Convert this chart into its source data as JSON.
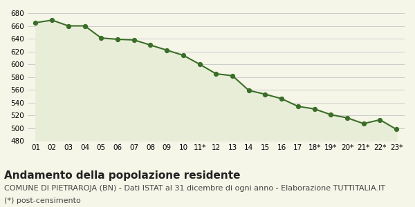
{
  "x_labels": [
    "01",
    "02",
    "03",
    "04",
    "05",
    "06",
    "07",
    "08",
    "09",
    "10",
    "11*",
    "12",
    "13",
    "14",
    "15",
    "16",
    "17",
    "18*",
    "19*",
    "20*",
    "21*",
    "22*",
    "23*"
  ],
  "plot_values": [
    665,
    669,
    660,
    660,
    641,
    639,
    638,
    630,
    622,
    614,
    600,
    585,
    582,
    559,
    553,
    546,
    534,
    530,
    521,
    516,
    507,
    513,
    498
  ],
  "ylim": [
    480,
    680
  ],
  "yticks": [
    480,
    500,
    520,
    540,
    560,
    580,
    600,
    620,
    640,
    660,
    680
  ],
  "line_color": "#3a6e28",
  "fill_color": "#e8edd8",
  "marker_color": "#3a6e28",
  "bg_color": "#f5f5e8",
  "grid_color": "#cccccc",
  "title": "Andamento della popolazione residente",
  "subtitle": "COMUNE DI PIETRAROJA (BN) - Dati ISTAT al 31 dicembre di ogni anno - Elaborazione TUTTITALIA.IT",
  "footnote": "(*) post-censimento",
  "title_fontsize": 11,
  "subtitle_fontsize": 8,
  "footnote_fontsize": 8
}
